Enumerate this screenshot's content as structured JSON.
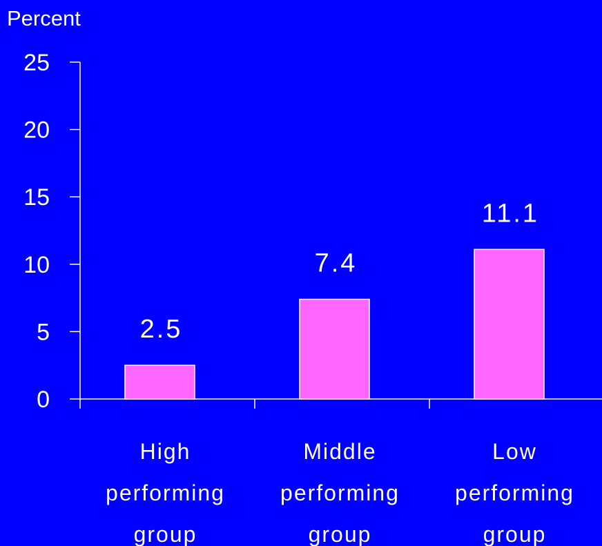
{
  "chart_data": {
    "type": "bar",
    "title": "",
    "ylabel": "Percent",
    "xlabel": "",
    "categories": [
      [
        "High",
        "performing",
        "group"
      ],
      [
        "Middle",
        "performing",
        "group"
      ],
      [
        "Low",
        "performing",
        "group"
      ]
    ],
    "values": [
      2.5,
      7.4,
      11.1
    ],
    "value_labels": [
      "2.5",
      "7.4",
      "11.1"
    ],
    "ylim": [
      0,
      25
    ],
    "yticks": [
      0,
      5,
      10,
      15,
      20,
      25
    ],
    "ytick_labels": [
      "0",
      "5",
      "10",
      "15",
      "20",
      "25"
    ],
    "grid": false,
    "legend": "none",
    "colors": {
      "background": "#0000ff",
      "bar": "#ff66ff",
      "bar_outline": "#ffffff",
      "axis": "#ffffff",
      "text": "#ffffff"
    }
  }
}
